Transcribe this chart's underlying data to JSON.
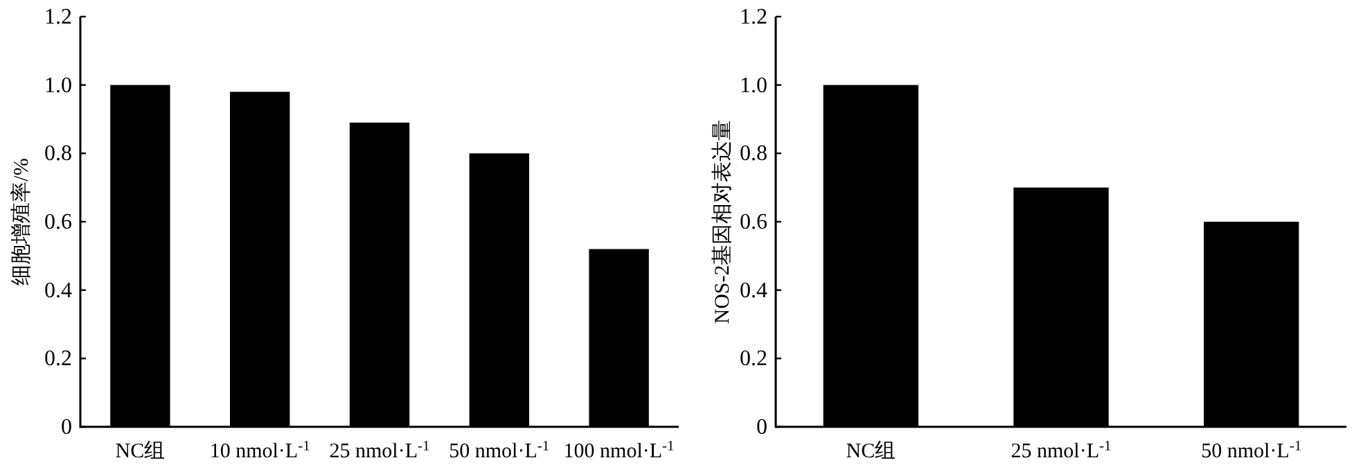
{
  "chart_data": [
    {
      "type": "bar",
      "ylabel": "细胞增殖率/%",
      "categories": [
        "NC组",
        "10 nmol·L$^{-1}$",
        "25 nmol·L$^{-1}$",
        "50 nmol·L$^{-1}$",
        "100 nmol·L$^{-1}$"
      ],
      "values": [
        1.0,
        0.98,
        0.89,
        0.8,
        0.52
      ],
      "color": "#000000",
      "ylim": [
        0,
        1.2
      ],
      "yticks": [
        0,
        0.2,
        0.4,
        0.6,
        0.8,
        {
          "value": 1.0,
          "label": "1.0"
        },
        1.2
      ]
    },
    {
      "type": "bar",
      "ylabel": "NOS-2基因相对表达量",
      "categories": [
        "NC组",
        "25 nmol·L$^{-1}$",
        "50 nmol·L$^{-1}$"
      ],
      "values": [
        1.0,
        0.7,
        0.6
      ],
      "color": "#000000",
      "ylim": [
        0,
        1.2
      ],
      "yticks": [
        0,
        0.2,
        0.4,
        0.6,
        0.8,
        {
          "value": 1.0,
          "label": "1.0"
        },
        1.2
      ]
    }
  ]
}
